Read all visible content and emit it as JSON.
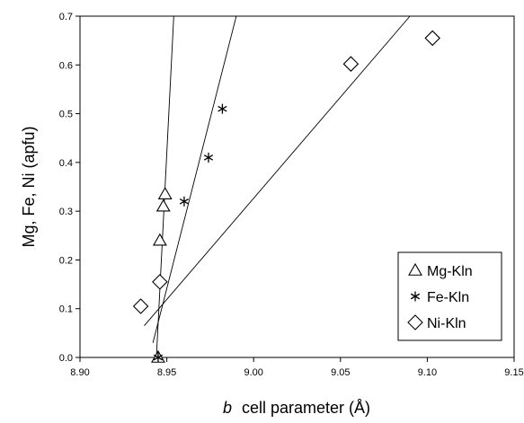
{
  "chart_data": {
    "type": "scatter",
    "xlabel_italic": "b",
    "xlabel_rest": "cell parameter (Å)",
    "ylabel": "Mg, Fe, Ni (apfu)",
    "xlim": [
      8.9,
      9.15
    ],
    "ylim": [
      0,
      0.7
    ],
    "x_ticks": [
      "8.90",
      "8.95",
      "9.00",
      "9.05",
      "9.10",
      "9.15"
    ],
    "y_ticks": [
      "0.0",
      "0.1",
      "0.2",
      "0.3",
      "0.4",
      "0.5",
      "0.6",
      "0.7"
    ],
    "grid": false,
    "legend_position": "bottom-right",
    "series": [
      {
        "name": "Mg-Kln",
        "marker": "triangle",
        "points": [
          [
            8.945,
            0.0
          ],
          [
            8.946,
            0.24
          ],
          [
            8.948,
            0.31
          ],
          [
            8.949,
            0.335
          ]
        ],
        "trendline": [
          [
            8.944,
            0.0
          ],
          [
            8.954,
            0.7
          ]
        ]
      },
      {
        "name": "Fe-Kln",
        "marker": "asterisk",
        "points": [
          [
            8.945,
            0.0
          ],
          [
            8.96,
            0.32
          ],
          [
            8.974,
            0.41
          ],
          [
            8.982,
            0.51
          ]
        ],
        "trendline": [
          [
            8.942,
            0.03
          ],
          [
            8.99,
            0.7
          ]
        ]
      },
      {
        "name": "Ni-Kln",
        "marker": "diamond",
        "points": [
          [
            8.935,
            0.105
          ],
          [
            8.946,
            0.155
          ],
          [
            9.056,
            0.602
          ],
          [
            9.103,
            0.655
          ]
        ],
        "trendline": [
          [
            8.937,
            0.065
          ],
          [
            9.09,
            0.7
          ]
        ]
      }
    ]
  }
}
